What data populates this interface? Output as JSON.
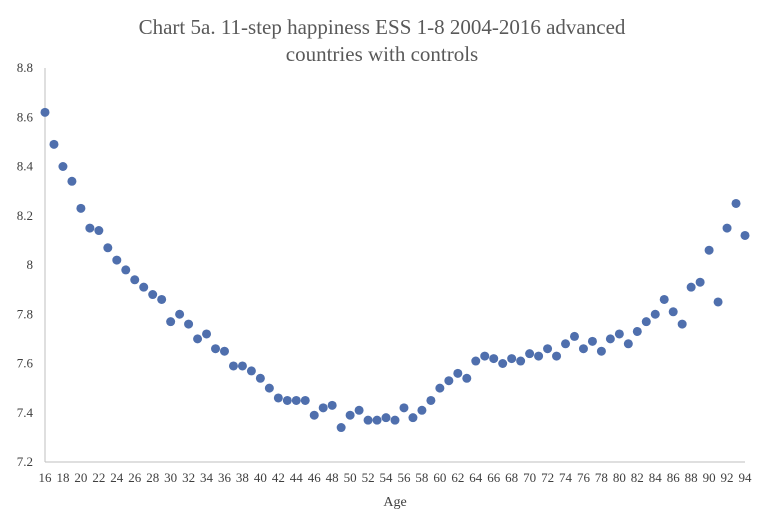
{
  "chart_data": {
    "type": "scatter",
    "title_lines": [
      "Chart 5a.  11-step happiness ESS 1-8 2004-2016 advanced",
      "countries with controls"
    ],
    "xlabel": "Age",
    "ylabel": "",
    "xlim": [
      16,
      94
    ],
    "ylim": [
      7.2,
      8.8
    ],
    "y_ticks": [
      "7.2",
      "7.4",
      "7.6",
      "7.8",
      "8",
      "8.2",
      "8.4",
      "8.6",
      "8.8"
    ],
    "x_ticks": [
      "16",
      "18",
      "20",
      "22",
      "24",
      "26",
      "28",
      "30",
      "32",
      "34",
      "36",
      "38",
      "40",
      "42",
      "44",
      "46",
      "48",
      "50",
      "52",
      "54",
      "56",
      "58",
      "60",
      "62",
      "64",
      "66",
      "68",
      "70",
      "72",
      "74",
      "76",
      "78",
      "80",
      "82",
      "84",
      "86",
      "88",
      "90",
      "92",
      "94"
    ],
    "grid": false,
    "legend": "none",
    "marker_color": "#4f6fad",
    "x": [
      16,
      17,
      18,
      19,
      20,
      21,
      22,
      23,
      24,
      25,
      26,
      27,
      28,
      29,
      30,
      31,
      32,
      33,
      34,
      35,
      36,
      37,
      38,
      39,
      40,
      41,
      42,
      43,
      44,
      45,
      46,
      47,
      48,
      49,
      50,
      51,
      52,
      53,
      54,
      55,
      56,
      57,
      58,
      59,
      60,
      61,
      62,
      63,
      64,
      65,
      66,
      67,
      68,
      69,
      70,
      71,
      72,
      73,
      74,
      75,
      76,
      77,
      78,
      79,
      80,
      81,
      82,
      83,
      84,
      85,
      86,
      87,
      88,
      89,
      90,
      91,
      92,
      93,
      94
    ],
    "y": [
      8.62,
      8.49,
      8.4,
      8.34,
      8.23,
      8.15,
      8.14,
      8.07,
      8.02,
      7.98,
      7.94,
      7.91,
      7.88,
      7.86,
      7.77,
      7.8,
      7.76,
      7.7,
      7.72,
      7.66,
      7.65,
      7.59,
      7.59,
      7.57,
      7.54,
      7.5,
      7.46,
      7.45,
      7.45,
      7.45,
      7.39,
      7.42,
      7.43,
      7.34,
      7.39,
      7.41,
      7.37,
      7.37,
      7.38,
      7.37,
      7.42,
      7.38,
      7.41,
      7.45,
      7.5,
      7.53,
      7.56,
      7.54,
      7.61,
      7.63,
      7.62,
      7.6,
      7.62,
      7.61,
      7.64,
      7.63,
      7.66,
      7.63,
      7.68,
      7.71,
      7.66,
      7.69,
      7.65,
      7.7,
      7.72,
      7.68,
      7.73,
      7.77,
      7.8,
      7.86,
      7.81,
      7.76,
      7.91,
      7.93,
      8.06,
      7.85,
      8.15,
      8.25,
      8.12
    ]
  }
}
